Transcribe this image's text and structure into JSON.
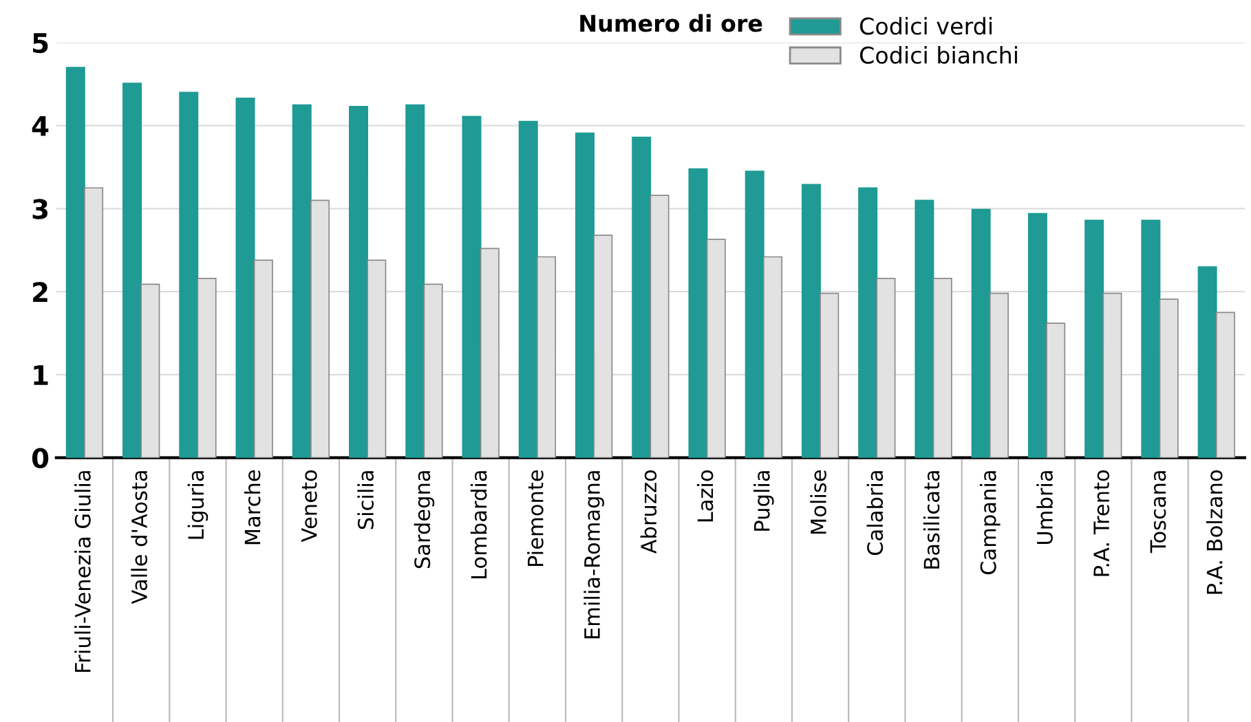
{
  "chart_data": {
    "type": "bar",
    "legend_title": "Numero di ore",
    "categories": [
      "Friuli-Venezia Giulia",
      "Valle d'Aosta",
      "Liguria",
      "Marche",
      "Veneto",
      "Sicilia",
      "Sardegna",
      "Lombardia",
      "Piemonte",
      "Emilia-Romagna",
      "Abruzzo",
      "Lazio",
      "Puglia",
      "Molise",
      "Calabria",
      "Basilicata",
      "Campania",
      "Umbria",
      "P.A. Trento",
      "Toscana",
      "P.A. Bolzano"
    ],
    "series": [
      {
        "name": "Codici verdi",
        "color": "#1f9a94",
        "values": [
          4.7,
          4.51,
          4.4,
          4.33,
          4.25,
          4.23,
          4.25,
          4.11,
          4.05,
          3.91,
          3.86,
          3.48,
          3.45,
          3.29,
          3.25,
          3.1,
          2.99,
          2.94,
          2.86,
          2.86,
          2.3
        ]
      },
      {
        "name": "Codici bianchi",
        "color": "#e2e2e2",
        "values": [
          3.25,
          2.09,
          2.16,
          2.38,
          3.1,
          2.38,
          2.09,
          2.52,
          2.42,
          2.68,
          3.16,
          2.63,
          2.42,
          1.98,
          2.16,
          2.16,
          1.98,
          1.62,
          1.98,
          1.91,
          1.75
        ]
      }
    ],
    "ylim": [
      0,
      5
    ],
    "yticks": [
      0,
      1,
      2,
      3,
      4,
      5
    ],
    "grid": "y",
    "legend": "top"
  }
}
